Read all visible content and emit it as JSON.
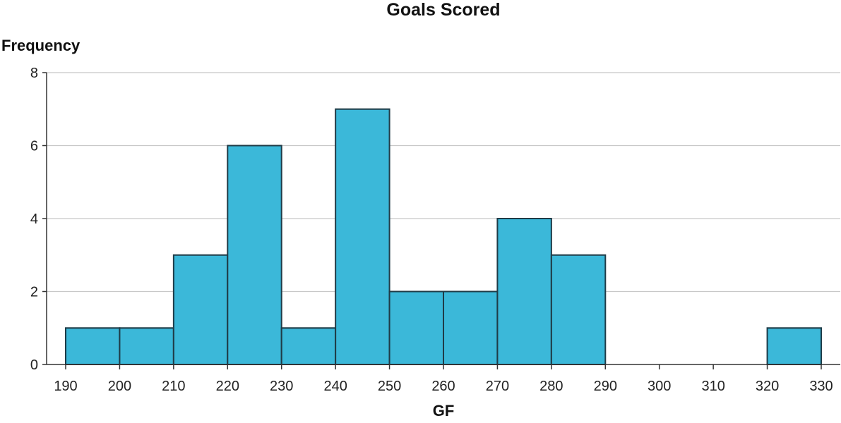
{
  "chart_data": {
    "type": "bar",
    "title": "Goals Scored",
    "xlabel": "GF",
    "ylabel": "Frequency",
    "bin_edges": [
      190,
      200,
      210,
      220,
      230,
      240,
      250,
      260,
      270,
      280,
      290,
      300,
      310,
      320,
      330
    ],
    "values": [
      1,
      1,
      3,
      6,
      1,
      7,
      2,
      2,
      4,
      3,
      0,
      0,
      0,
      1
    ],
    "xticks": [
      190,
      200,
      210,
      220,
      230,
      240,
      250,
      260,
      270,
      280,
      290,
      300,
      310,
      320,
      330
    ],
    "yticks": [
      0,
      2,
      4,
      6,
      8
    ],
    "xlim": [
      190,
      330
    ],
    "ylim": [
      0,
      8
    ],
    "grid": "horizontal",
    "bar_color": "#3bb8d9",
    "edge_color": "#1f3b47"
  }
}
